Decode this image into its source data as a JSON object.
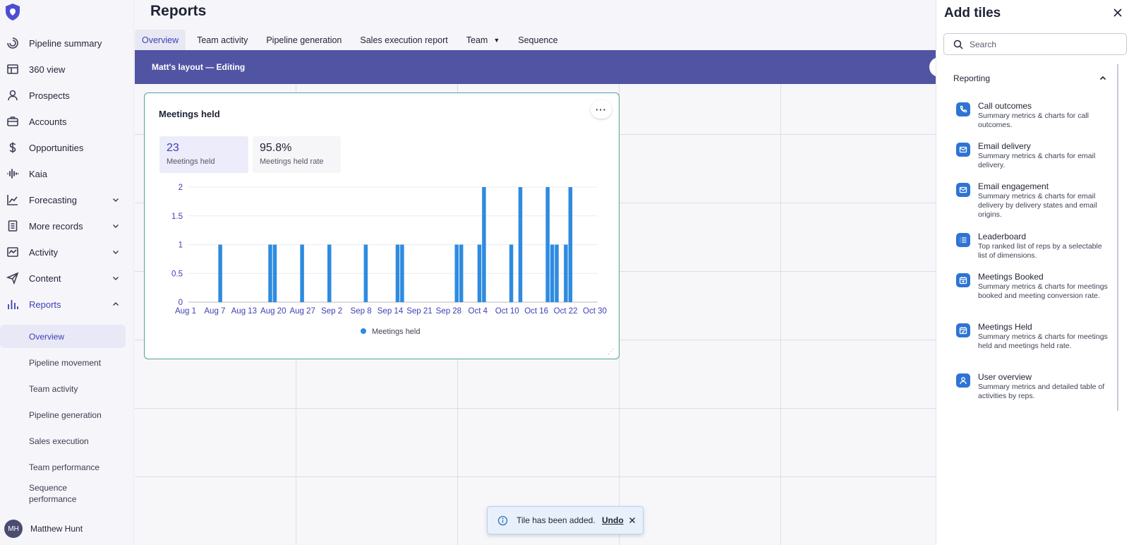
{
  "app": {
    "logo_icon": "shield-logo-icon"
  },
  "sidebar": {
    "items": [
      {
        "label": "Pipeline summary",
        "icon": "pipeline-icon"
      },
      {
        "label": "360 view",
        "icon": "table-icon"
      },
      {
        "label": "Prospects",
        "icon": "person-icon"
      },
      {
        "label": "Accounts",
        "icon": "briefcase-icon"
      },
      {
        "label": "Opportunities",
        "icon": "dollar-icon"
      },
      {
        "label": "Kaia",
        "icon": "waveform-icon"
      },
      {
        "label": "Forecasting",
        "icon": "trend-icon"
      },
      {
        "label": "More records",
        "icon": "document-icon"
      },
      {
        "label": "Activity",
        "icon": "activity-icon"
      },
      {
        "label": "Content",
        "icon": "send-icon"
      },
      {
        "label": "Reports",
        "icon": "bar-chart-icon"
      }
    ],
    "sub_items": [
      "Overview",
      "Pipeline movement",
      "Team activity",
      "Pipeline generation",
      "Sales execution",
      "Team performance",
      "Sequence performance"
    ],
    "user": {
      "initials": "MH",
      "name": "Matthew Hunt"
    }
  },
  "main": {
    "title": "Reports",
    "tabs": [
      "Overview",
      "Team activity",
      "Pipeline generation",
      "Sales execution report",
      "Team",
      "Sequence"
    ],
    "banner_title": "Matt's layout — Editing",
    "tile": {
      "title": "Meetings held",
      "menu": "···",
      "metrics": [
        {
          "value": "23",
          "label": "Meetings held"
        },
        {
          "value": "95.8%",
          "label": "Meetings held rate"
        }
      ]
    }
  },
  "chart_data": {
    "type": "bar",
    "color": "#2e8be0",
    "series": [
      {
        "name": "Meetings held",
        "points": [
          [
            "2023-08-08",
            1
          ],
          [
            "2023-08-19",
            1
          ],
          [
            "2023-08-20",
            1
          ],
          [
            "2023-08-26",
            1
          ],
          [
            "2023-09-01",
            1
          ],
          [
            "2023-09-09",
            1
          ],
          [
            "2023-09-16",
            1
          ],
          [
            "2023-09-17",
            1
          ],
          [
            "2023-09-29",
            1
          ],
          [
            "2023-09-30",
            1
          ],
          [
            "2023-10-04",
            1
          ],
          [
            "2023-10-05",
            2
          ],
          [
            "2023-10-11",
            1
          ],
          [
            "2023-10-13",
            2
          ],
          [
            "2023-10-19",
            2
          ],
          [
            "2023-10-20",
            1
          ],
          [
            "2023-10-21",
            1
          ],
          [
            "2023-10-23",
            1
          ],
          [
            "2023-10-24",
            2
          ]
        ]
      }
    ],
    "x_tick_labels": [
      "Aug 1",
      "Aug 7",
      "Aug 13",
      "Aug 20",
      "Aug 27",
      "Sep 2",
      "Sep 8",
      "Sep 14",
      "Sep 21",
      "Sep 28",
      "Oct 4",
      "Oct 10",
      "Oct 16",
      "Oct 22",
      "Oct 30"
    ],
    "y_ticks": [
      "0",
      "0.5",
      "1",
      "1.5",
      "2"
    ],
    "ylim": [
      0,
      2
    ],
    "grid": true,
    "legend_position": "bottom"
  },
  "panel": {
    "title": "Add tiles",
    "search_placeholder": "Search",
    "section": "Reporting",
    "tiles": [
      {
        "name": "Call outcomes",
        "desc": "Summary metrics & charts for call outcomes.",
        "icon": "phone-icon"
      },
      {
        "name": "Email delivery",
        "desc": "Summary metrics & charts for email delivery.",
        "icon": "envelope-icon"
      },
      {
        "name": "Email engagement",
        "desc": "Summary metrics & charts for email delivery by delivery states and email origins.",
        "icon": "envelope-icon"
      },
      {
        "name": "Leaderboard",
        "desc": "Top ranked list of reps by a selectable list of dimensions.",
        "icon": "list-icon"
      },
      {
        "name": "Meetings Booked",
        "desc": "Summary metrics & charts for meetings booked and meeting conversion rate.",
        "icon": "calendar-plus-icon"
      },
      {
        "name": "Meetings Held",
        "desc": "Summary metrics & charts for meetings held and meetings held rate.",
        "icon": "calendar-check-icon"
      },
      {
        "name": "User overview",
        "desc": "Summary metrics and detailed table of activities by reps.",
        "icon": "user-icon"
      }
    ]
  },
  "toast": {
    "message": "Tile has been added.",
    "action": "Undo"
  }
}
